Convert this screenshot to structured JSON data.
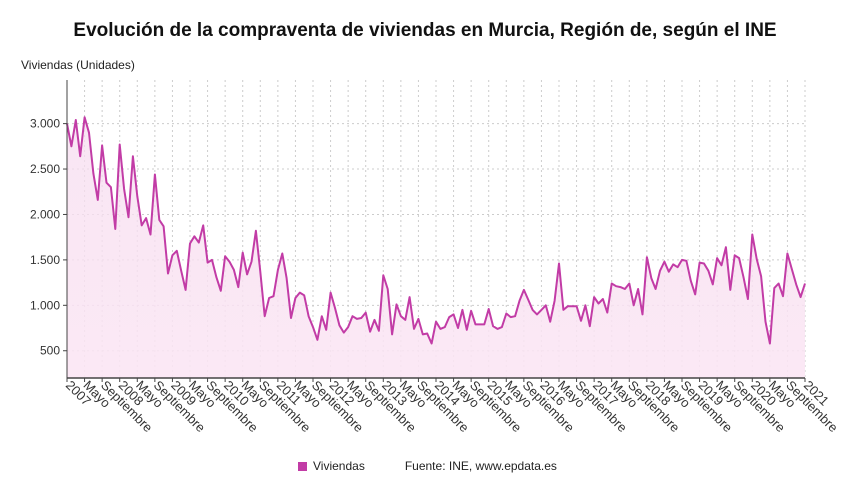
{
  "chart_data": {
    "type": "area",
    "title": "Evolución de la compraventa de viviendas en Murcia, Región de, según el INE",
    "ylabel": "Viviendas (Unidades)",
    "xlabel": "",
    "start": "2007-01",
    "frequency": "monthly",
    "x_tick_labels": [
      "2007",
      "Mayo",
      "Septiembre",
      "2008",
      "Mayo",
      "Septiembre",
      "2009",
      "Mayo",
      "Septiembre",
      "2010",
      "Mayo",
      "Septiembre",
      "2011",
      "Mayo",
      "Septiembre",
      "2012",
      "Mayo",
      "Septiembre",
      "2013",
      "Mayo",
      "Septiembre",
      "2014",
      "Mayo",
      "Septiembre",
      "2015",
      "Mayo",
      "Septiembre",
      "2016",
      "Mayo",
      "Septiembre",
      "2017",
      "Mayo",
      "Septiembre",
      "2018",
      "Mayo",
      "Septiembre",
      "2019",
      "Mayo",
      "Septiembre",
      "2020",
      "Mayo",
      "Septiembre",
      "2021"
    ],
    "y_ticks": [
      500,
      1000,
      1500,
      2000,
      2500,
      3000
    ],
    "y_tick_labels": [
      "500",
      "1.000",
      "1.500",
      "2.000",
      "2.500",
      "3.000"
    ],
    "ylim": [
      200,
      3480
    ],
    "grid": true,
    "legend_position": "bottom",
    "series": [
      {
        "name": "Viviendas",
        "color": "#c23ca6",
        "values": [
          3000,
          2750,
          3040,
          2640,
          3070,
          2900,
          2450,
          2160,
          2760,
          2350,
          2300,
          1840,
          2770,
          2280,
          1970,
          2640,
          2200,
          1880,
          1960,
          1780,
          2440,
          1940,
          1870,
          1350,
          1550,
          1600,
          1380,
          1170,
          1680,
          1760,
          1690,
          1880,
          1470,
          1500,
          1310,
          1160,
          1540,
          1480,
          1390,
          1200,
          1580,
          1340,
          1480,
          1820,
          1370,
          880,
          1080,
          1100,
          1390,
          1570,
          1300,
          860,
          1080,
          1140,
          1110,
          880,
          760,
          620,
          880,
          730,
          1140,
          970,
          780,
          700,
          760,
          880,
          850,
          860,
          920,
          710,
          840,
          720,
          1330,
          1180,
          680,
          1010,
          880,
          840,
          1090,
          740,
          850,
          680,
          690,
          580,
          820,
          740,
          760,
          870,
          900,
          750,
          950,
          730,
          940,
          790,
          790,
          790,
          960,
          770,
          740,
          760,
          910,
          870,
          880,
          1050,
          1170,
          1060,
          950,
          900,
          950,
          1000,
          820,
          1050,
          1460,
          950,
          990,
          990,
          990,
          830,
          1000,
          770,
          1090,
          1020,
          1070,
          920,
          1240,
          1210,
          1200,
          1180,
          1240,
          1000,
          1180,
          900,
          1530,
          1300,
          1180,
          1380,
          1480,
          1370,
          1450,
          1420,
          1500,
          1490,
          1270,
          1120,
          1470,
          1460,
          1380,
          1230,
          1520,
          1440,
          1640,
          1170,
          1550,
          1520,
          1310,
          1070,
          1780,
          1510,
          1320,
          820,
          580,
          1190,
          1240,
          1100,
          1570,
          1400,
          1230,
          1090,
          1240
        ]
      }
    ]
  },
  "legend": {
    "series_label": "Viviendas",
    "source": "Fuente: INE, www.epdata.es"
  }
}
